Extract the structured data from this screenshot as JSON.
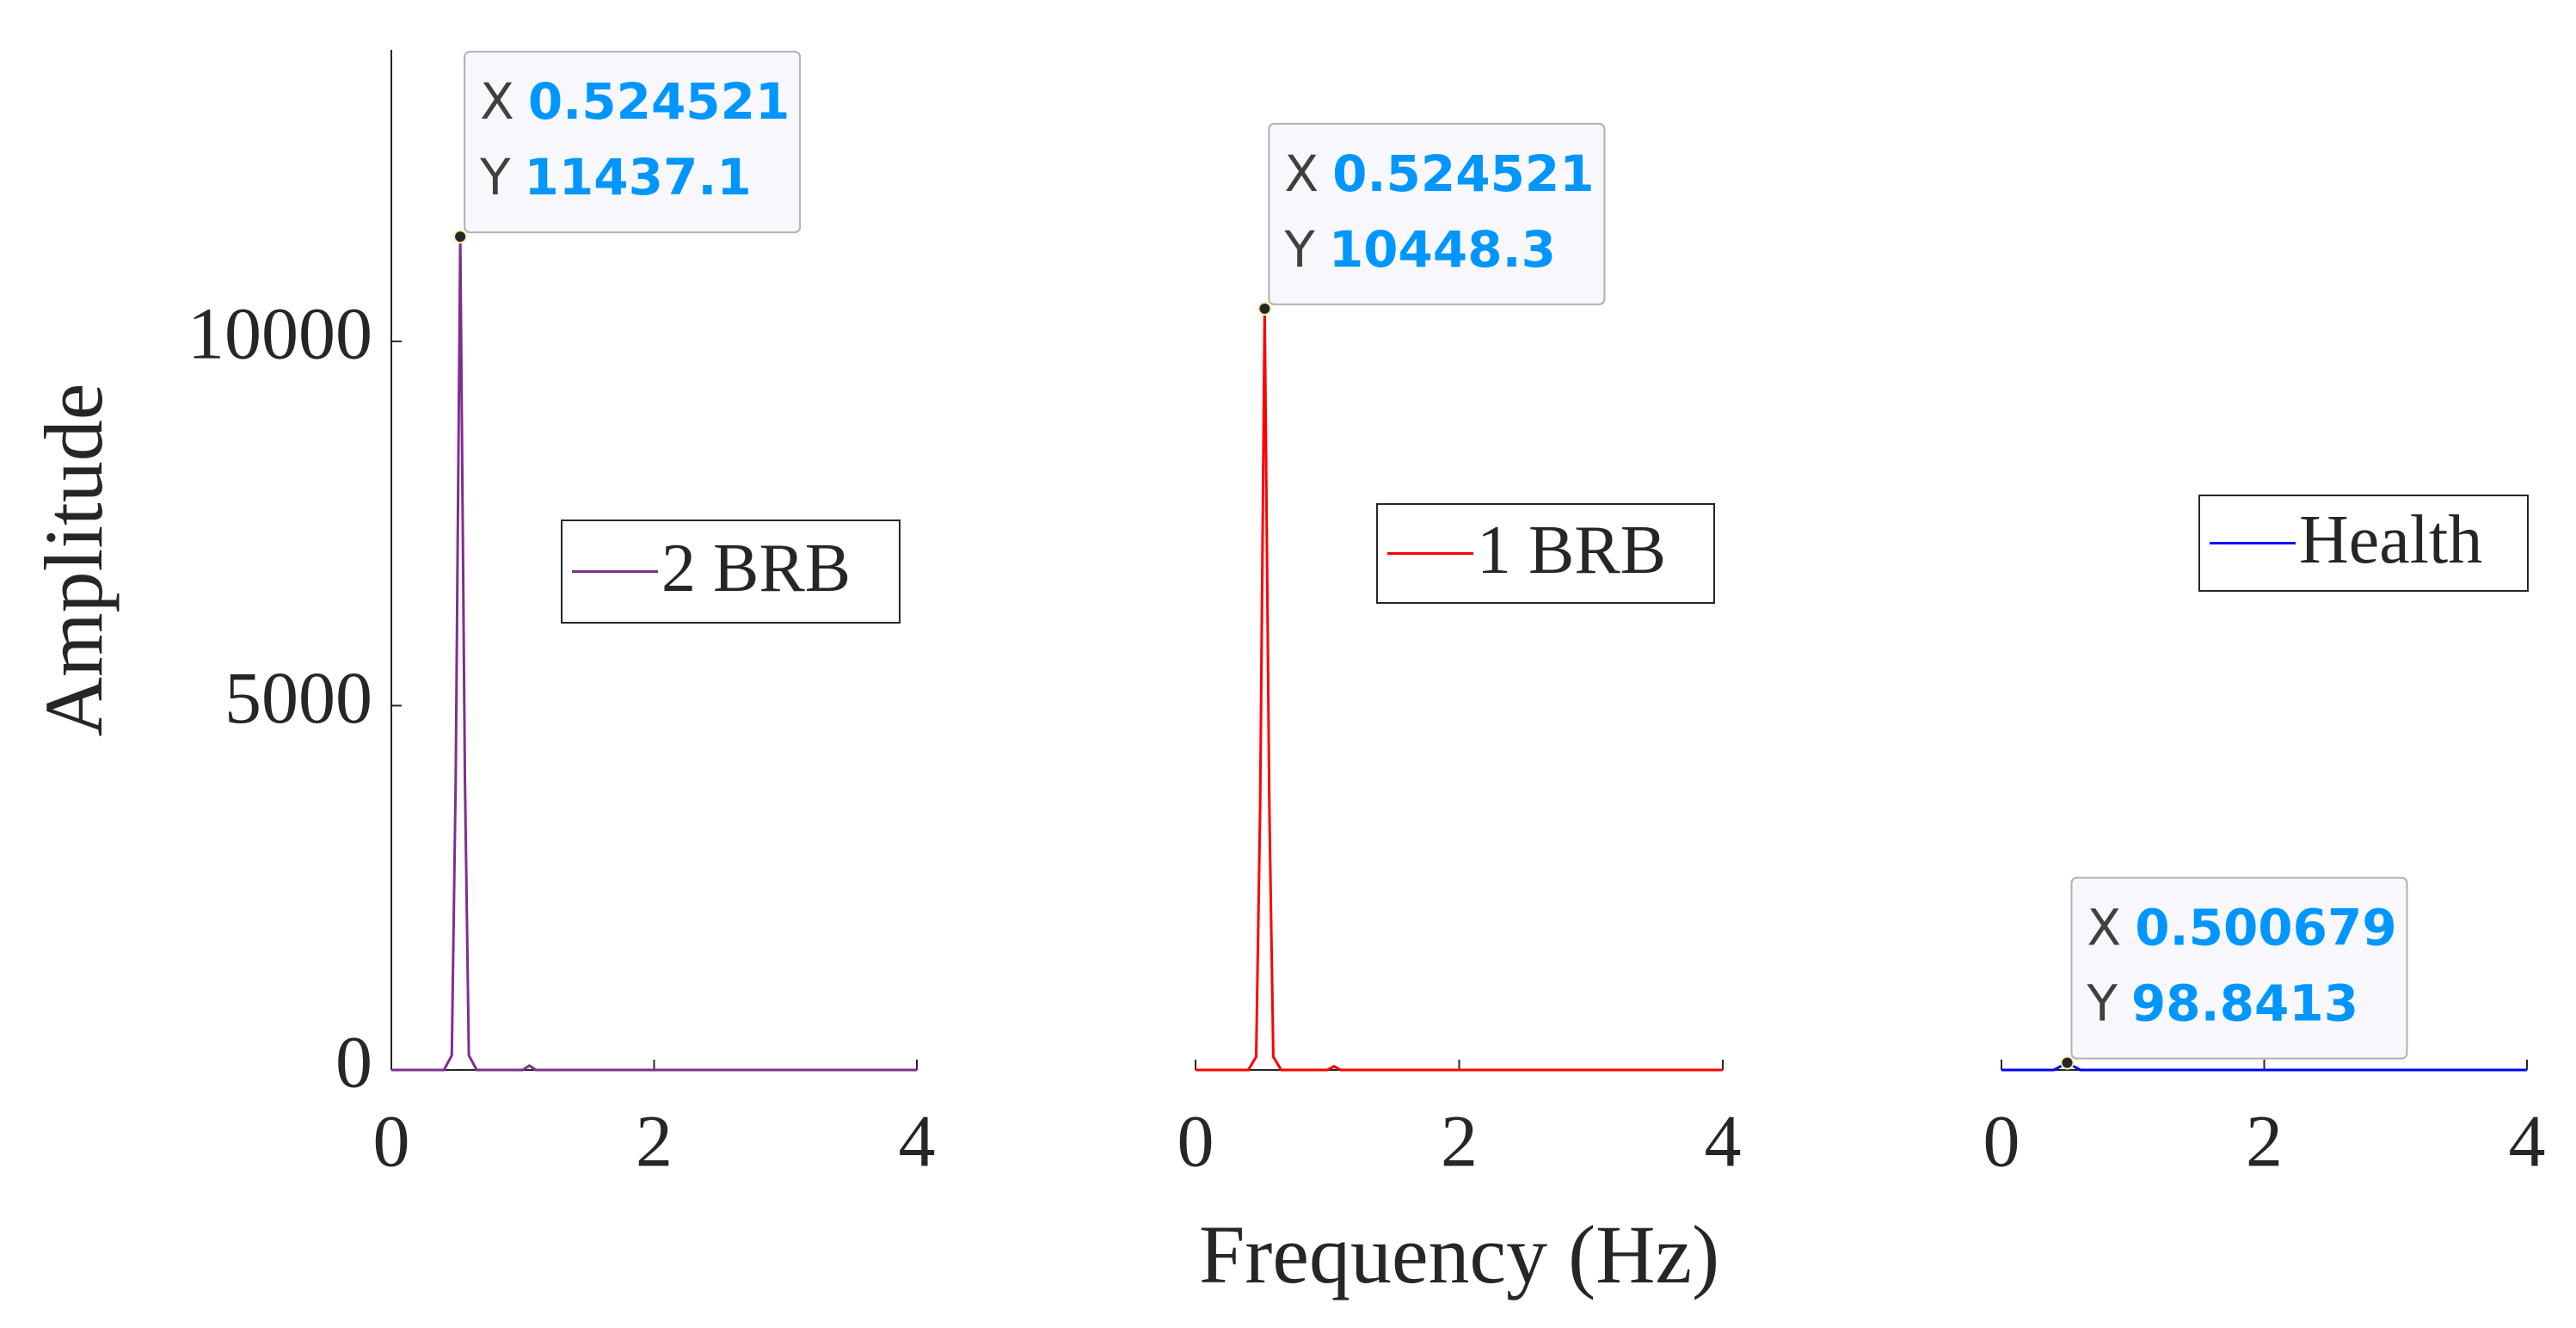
{
  "chart_data": [
    {
      "type": "line",
      "ylabel": "Amplitude",
      "x": [
        0,
        0.4,
        0.46,
        0.49,
        0.524521,
        0.56,
        0.59,
        0.65,
        1.0,
        1.05,
        1.1,
        4
      ],
      "series": [
        {
          "name": "2 BRB",
          "color": "#7e2f8e",
          "values": [
            0,
            0,
            200,
            4000,
            11437.1,
            4000,
            200,
            0,
            0,
            60,
            0,
            0
          ]
        }
      ],
      "xlim": [
        0,
        4
      ],
      "xticks": [
        0,
        2,
        4
      ],
      "ylim": [
        0,
        14000
      ],
      "yticks": [
        0,
        5000,
        10000
      ],
      "datatip": {
        "x_label": "X",
        "x": 0.524521,
        "y_label": "Y",
        "y": 11437.1
      }
    },
    {
      "type": "line",
      "xlabel": "Frequency (Hz)",
      "x": [
        0,
        0.4,
        0.46,
        0.49,
        0.524521,
        0.56,
        0.59,
        0.65,
        1.0,
        1.05,
        1.1,
        4
      ],
      "series": [
        {
          "name": "1 BRB",
          "color": "#ff0000",
          "values": [
            0,
            0,
            180,
            3600,
            10448.3,
            3600,
            180,
            0,
            0,
            50,
            0,
            0
          ]
        }
      ],
      "xlim": [
        0,
        4
      ],
      "xticks": [
        0,
        2,
        4
      ],
      "ylim": [
        0,
        14000
      ],
      "datatip": {
        "x_label": "X",
        "x": 0.524521,
        "y_label": "Y",
        "y": 10448.3
      }
    },
    {
      "type": "line",
      "x": [
        0,
        0.4,
        0.500679,
        0.6,
        4
      ],
      "series": [
        {
          "name": "Health",
          "color": "#0000ff",
          "values": [
            0,
            0,
            98.8413,
            0,
            0
          ]
        }
      ],
      "xlim": [
        0,
        4
      ],
      "xticks": [
        0,
        2,
        4
      ],
      "ylim": [
        0,
        14000
      ],
      "datatip": {
        "x_label": "X",
        "x": 0.500679,
        "y_label": "Y",
        "y": 98.8413
      }
    }
  ]
}
